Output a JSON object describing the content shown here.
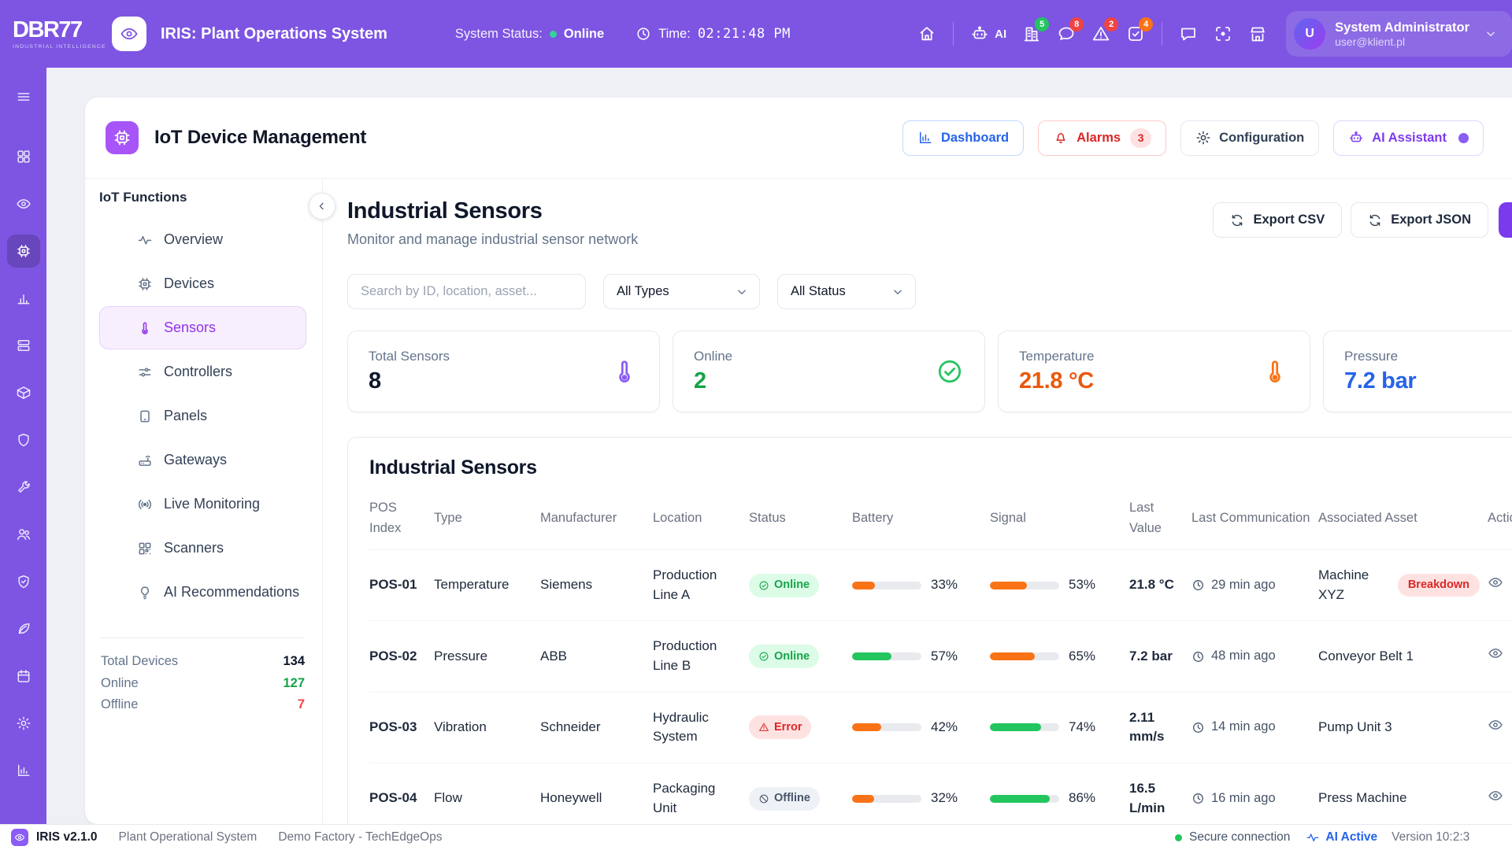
{
  "colors": {
    "brand_purple": "#7d55e2",
    "accent_purple": "#a855f7",
    "green": "#22c55e",
    "green_text": "#16a34a",
    "red": "#ef4444",
    "orange": "#f97316",
    "blue": "#2563eb"
  },
  "topbar": {
    "logo": "DBR77",
    "logo_sub": "INDUSTRIAL INTELLIGENCE",
    "title": "IRIS: Plant Operations System",
    "status_label": "System Status:",
    "status_value": "Online",
    "time_label": "Time:",
    "time_value": "02:21:48 PM",
    "ai_label": "AI",
    "badge_icons": [
      {
        "icon": "factory",
        "badge": "5",
        "badge_color": "#22c55e"
      },
      {
        "icon": "chat",
        "badge": "8",
        "badge_color": "#ef4444"
      },
      {
        "icon": "warning",
        "badge": "2",
        "badge_color": "#ef4444"
      },
      {
        "icon": "task",
        "badge": "4",
        "badge_color": "#f97316"
      }
    ],
    "user": {
      "initial": "U",
      "name": "System Administrator",
      "email": "user@klient.pl"
    }
  },
  "rail": [
    {
      "icon": "menu"
    },
    {
      "icon": "grid"
    },
    {
      "icon": "eye"
    },
    {
      "icon": "chip",
      "active": true
    },
    {
      "icon": "bars"
    },
    {
      "icon": "layers"
    },
    {
      "icon": "box"
    },
    {
      "icon": "shield"
    },
    {
      "icon": "wrench"
    },
    {
      "icon": "users"
    },
    {
      "icon": "shield-check"
    },
    {
      "icon": "leaf"
    },
    {
      "icon": "calendar"
    },
    {
      "icon": "gear"
    },
    {
      "icon": "chart"
    }
  ],
  "page": {
    "title": "IoT Device Management",
    "buttons": {
      "dashboard": "Dashboard",
      "alarms": "Alarms",
      "alarms_count": "3",
      "configuration": "Configuration",
      "ai_assistant": "AI Assistant"
    }
  },
  "subnav": {
    "title": "IoT Functions",
    "items": [
      {
        "label": "Overview",
        "icon": "pulse"
      },
      {
        "label": "Devices",
        "icon": "chip"
      },
      {
        "label": "Sensors",
        "icon": "thermometer",
        "active": true
      },
      {
        "label": "Controllers",
        "icon": "sliders"
      },
      {
        "label": "Panels",
        "icon": "tablet"
      },
      {
        "label": "Gateways",
        "icon": "router"
      },
      {
        "label": "Live Monitoring",
        "icon": "broadcast"
      },
      {
        "label": "Scanners",
        "icon": "qr"
      },
      {
        "label": "AI Recommendations",
        "icon": "bulb"
      }
    ],
    "stats": [
      {
        "label": "Total Devices",
        "value": "134",
        "color": "#0f172a"
      },
      {
        "label": "Online",
        "value": "127",
        "color": "#16a34a"
      },
      {
        "label": "Offline",
        "value": "7",
        "color": "#ef4444"
      }
    ]
  },
  "content": {
    "title": "Industrial Sensors",
    "subtitle": "Monitor and manage industrial sensor network",
    "export_csv": "Export CSV",
    "export_json": "Export JSON",
    "search_placeholder": "Search by ID, location, asset...",
    "type_filter": "All Types",
    "status_filter": "All Status",
    "stat_cards": [
      {
        "label": "Total Sensors",
        "value": "8",
        "icon": "thermometer",
        "icon_color": "#8b5cf6",
        "value_color": "#0f172a"
      },
      {
        "label": "Online",
        "value": "2",
        "icon": "check-circle",
        "icon_color": "#22c55e",
        "value_color": "#16a34a"
      },
      {
        "label": "Temperature",
        "value": "21.8 °C",
        "icon": "thermometer",
        "icon_color": "#f97316",
        "value_color": "#ea580c"
      },
      {
        "label": "Pressure",
        "value": "7.2 bar",
        "icon": "gauge",
        "icon_color": "#3b82f6",
        "value_color": "#2563eb"
      }
    ],
    "table": {
      "title": "Industrial Sensors",
      "columns": [
        "POS Index",
        "Type",
        "Manufacturer",
        "Location",
        "Status",
        "Battery",
        "Signal",
        "Last Value",
        "Last Communication",
        "Associated Asset",
        "Actions"
      ],
      "rows": [
        {
          "pos": "POS-01",
          "type": "Temperature",
          "manufacturer": "Siemens",
          "location": "Production Line A",
          "status": "Online",
          "battery": "33%",
          "battery_color": "#f97316",
          "signal": "53%",
          "signal_color": "#f97316",
          "last_value": "21.8 °C",
          "last_comm": "29 min ago",
          "asset": "Machine XYZ",
          "asset_badge": "Breakdown"
        },
        {
          "pos": "POS-02",
          "type": "Pressure",
          "manufacturer": "ABB",
          "location": "Production Line B",
          "status": "Online",
          "battery": "57%",
          "battery_color": "#22c55e",
          "signal": "65%",
          "signal_color": "#f97316",
          "last_value": "7.2 bar",
          "last_comm": "48 min ago",
          "asset": "Conveyor Belt 1"
        },
        {
          "pos": "POS-03",
          "type": "Vibration",
          "manufacturer": "Schneider",
          "location": "Hydraulic System",
          "status": "Error",
          "battery": "42%",
          "battery_color": "#f97316",
          "signal": "74%",
          "signal_color": "#22c55e",
          "last_value": "2.11 mm/s",
          "last_comm": "14 min ago",
          "asset": "Pump Unit 3"
        },
        {
          "pos": "POS-04",
          "type": "Flow",
          "manufacturer": "Honeywell",
          "location": "Packaging Unit",
          "status": "Offline",
          "battery": "32%",
          "battery_color": "#f97316",
          "signal": "86%",
          "signal_color": "#22c55e",
          "last_value": "16.5 L/min",
          "last_comm": "16 min ago",
          "asset": "Press Machine"
        }
      ]
    }
  },
  "footer": {
    "app": "IRIS v2.1.0",
    "system": "Plant Operational System",
    "site": "Demo Factory - TechEdgeOps",
    "secure": "Secure connection",
    "ai": "AI Active",
    "version": "Version 10:2:3"
  }
}
